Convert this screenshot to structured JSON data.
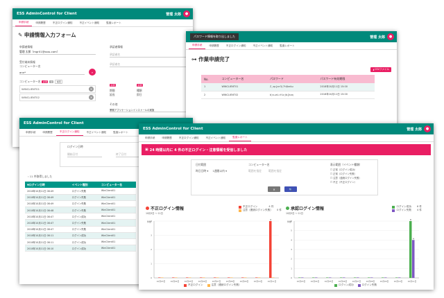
{
  "app": {
    "brand": "ESS AdminControl for Client",
    "user": "管理 太郎"
  },
  "tabs": [
    "申請手続",
    "申請履歴",
    "不正ログイン通知",
    "不正イベント通知",
    "監査レポート"
  ],
  "w1": {
    "title": "申請情報入力フォーム",
    "applicant_label": "申請者情報",
    "applicant_value": "管理 太郎（mgr01@ssss.com）",
    "approver_label": "承認者情報",
    "approver_ph1": "承認者名",
    "approver_ph2": "承認者名",
    "target_label": "受付端末情報",
    "target_sub": "コンピューター名",
    "target_value": "ann*",
    "search_label": "コンピューター名",
    "required": "必須",
    "btn_all": "全",
    "btn_search": "検索",
    "pc1": "WINCLIENT01",
    "pc2": "WINCLIENT02",
    "period_req": "必須",
    "period_label": "期間",
    "period_value": "延長",
    "kind_label": "種類",
    "kind_req": "必須",
    "kind_value": "即日",
    "other_label": "その他",
    "other_value": "業務アプリケーションインストールの実施"
  },
  "w2": {
    "notice": "パスワード情報を取り出しました",
    "title": "作業申請完了",
    "csv": "CSVファイル",
    "headers": [
      "No.",
      "コンピューター名",
      "パスワード",
      "パスワード有効期限"
    ],
    "rows": [
      [
        "1",
        "WINCLIENT01",
        "Z_xp{ar3)7t$km%u",
        "2018年10月11日 15:00"
      ],
      [
        "2",
        "WINCLIENT02",
        "b)v+eL=t%cjb{kvq",
        "2018年10月11日 15:00"
      ]
    ]
  },
  "w3": {
    "period_label": "ログイン日時",
    "from_ph": "開始日付",
    "to_ph": "終了日付",
    "count": "11 件取得しました",
    "headers": [
      "▼ログイン日時",
      "イベント種別",
      "コンピューター名"
    ],
    "rows": [
      [
        "2018年10月11日 08:49",
        "ログイン失敗",
        "WinClient01"
      ],
      [
        "2018年10月11日 08:49",
        "ログイン失敗",
        "WinClient01"
      ],
      [
        "2018年10月11日 08:49",
        "ログイン失敗",
        "WinClient01"
      ],
      [
        "2018年10月11日 08:48",
        "ログイン失敗",
        "WinClient01"
      ],
      [
        "2018年10月11日 08:47",
        "ログイン成功",
        "WinClient01"
      ],
      [
        "2018年10月11日 08:47",
        "ログイン失敗",
        "WinClient01"
      ],
      [
        "2018年10月11日 08:47",
        "ログイン失敗",
        "WinClient01"
      ],
      [
        "2018年10月11日 08:11",
        "ログイン成功",
        "WinClient01"
      ],
      [
        "2018年10月11日 08:11",
        "ログイン成功",
        "WinClient01"
      ],
      [
        "2018年10月11日 08:10",
        "ログイン成功",
        "WinClient01"
      ]
    ]
  },
  "w4": {
    "alert": "24 時間以内に 4 件の不正ログイン・注意情報を受信しました",
    "f_date": "日付範囲",
    "f_date_v1": "昨日日時",
    "f_date_v2": "1週間以内",
    "f_pc": "コンピューター名",
    "f_pc_ph": "範囲を指定",
    "f_pc_ph2": "範囲を指定",
    "f_event": "表示範囲（イベント種類）",
    "checks": [
      "正常（ログイン成功）",
      "正常（ログイン失敗）",
      "注意（連続ログイン失敗）",
      "不正（不正ログイン）"
    ],
    "btn_clear": "✕",
    "btn_search": "🔍",
    "left_title": "不正ログイン情報",
    "left_sub": "10月3日 〜 11日",
    "left_leg1": "不正ログイン",
    "left_leg1_n": "4 件",
    "left_leg2": "注意（連続ログイン失敗）",
    "left_leg2_n": "0 件",
    "right_title": "承認ログイン情報",
    "right_sub": "10月3日 〜 11日",
    "right_leg1": "ログイン成功",
    "right_leg1_n": "6 件",
    "right_leg2": "ログイン失敗",
    "right_leg2_n": "4 件",
    "left_bottom1": "不正ログイン",
    "left_bottom2": "注意（連続ログイン失敗）",
    "right_bottom1": "ログイン成功",
    "right_bottom2": "ログイン失敗",
    "axis_note": "件数"
  },
  "colors": {
    "teal": "#00897b",
    "pink": "#e91e63",
    "red": "#f44336",
    "green": "#4caf50",
    "purple": "#7e57c2"
  },
  "chart_data": [
    {
      "type": "bar",
      "title": "不正ログイン情報",
      "categories": [
        "10月03日",
        "10月04日",
        "10月05日",
        "10月06日",
        "10月07日",
        "10月08日",
        "10月09日",
        "10月10日",
        "10月11日"
      ],
      "series": [
        {
          "name": "不正ログイン",
          "values": [
            0,
            0,
            0,
            0,
            0,
            0,
            0,
            0,
            4
          ]
        },
        {
          "name": "注意（連続ログイン失敗）",
          "values": [
            0,
            0,
            0,
            0,
            0,
            0,
            0,
            0,
            0
          ]
        }
      ],
      "ylim": [
        0,
        4
      ]
    },
    {
      "type": "bar",
      "title": "承認ログイン情報",
      "categories": [
        "10月03日",
        "10月04日",
        "10月05日",
        "10月06日",
        "10月07日",
        "10月08日",
        "10月09日",
        "10月10日",
        "10月11日"
      ],
      "series": [
        {
          "name": "ログイン成功",
          "values": [
            0,
            0,
            0,
            0,
            0,
            0,
            0,
            0,
            6
          ]
        },
        {
          "name": "ログイン失敗",
          "values": [
            0,
            0,
            0,
            0,
            0,
            0,
            0,
            0,
            4
          ]
        }
      ],
      "ylim": [
        0,
        6
      ]
    }
  ]
}
